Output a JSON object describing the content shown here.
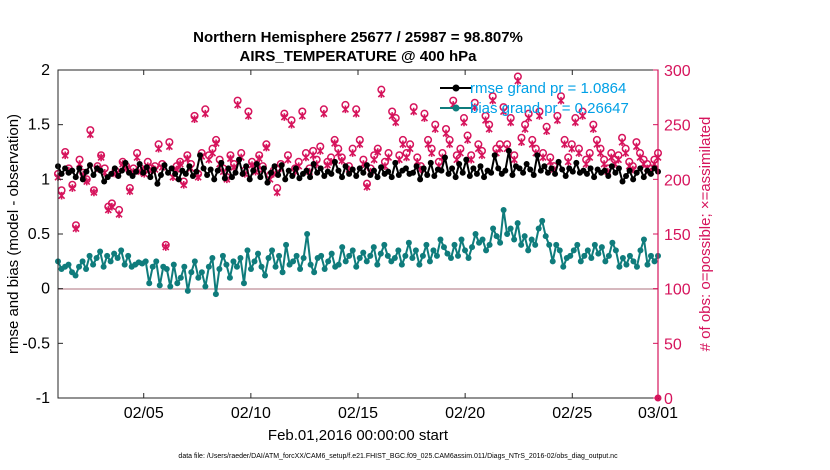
{
  "chart_data": {
    "type": "line",
    "title": [
      "Northern Hemisphere 25677 / 25987 = 98.807%",
      "AIRS_TEMPERATURE @ 400 hPa"
    ],
    "xlabel": "Feb.01,2016 00:00:00 start",
    "ylabel": "rmse and bias (model - observation)",
    "ylabel_right": "# of obs: o=possible; ×=assimilated",
    "xlim": [
      1,
      29
    ],
    "ylim": [
      -1,
      2
    ],
    "ylim_right": [
      0,
      300
    ],
    "x_ticks": [
      5,
      10,
      15,
      20,
      25,
      29
    ],
    "x_tick_labels": [
      "02/05",
      "02/10",
      "02/15",
      "02/20",
      "02/25",
      "03/01"
    ],
    "y_ticks": [
      -1,
      -0.5,
      0,
      0.5,
      1,
      1.5,
      2
    ],
    "y_tick_labels": [
      "-1",
      "-0.5",
      "0",
      "0.5",
      "1",
      "1.5",
      "2"
    ],
    "y_right_ticks": [
      0,
      50,
      100,
      150,
      200,
      250,
      300
    ],
    "y_right_tick_labels": [
      "0",
      "50",
      "100",
      "150",
      "200",
      "250",
      "300"
    ],
    "legend_position": "top-right",
    "footnote": "data file: /Users/raeder/DAI/ATM_forcXX/CAM6_setup/f.e21.FHIST_BGC.f09_025.CAM6assim.011/Diags_NTrS_2016-02/obs_diag_output.nc",
    "zero_line_color": "#c9a0a8",
    "series": [
      {
        "name": "rmse grand pr = 1.0864",
        "color": "#000000",
        "axis": "left",
        "values": [
          1.12,
          1.05,
          1.1,
          1.06,
          1.08,
          1.02,
          1.1,
          1.0,
          1.07,
          1.13,
          1.04,
          1.1,
          1.08,
          0.98,
          1.02,
          1.05,
          1.1,
          1.03,
          1.08,
          1.15,
          1.06,
          1.03,
          1.07,
          1.14,
          1.06,
          1.11,
          1.02,
          1.09,
          0.96,
          1.04,
          1.13,
          1.06,
          1.1,
          1.05,
          1.0,
          1.08,
          1.05,
          1.12,
          1.03,
          1.07,
          1.22,
          1.1,
          1.04,
          1.09,
          1.0,
          1.08,
          1.15,
          1.01,
          1.1,
          1.02,
          1.06,
          1.18,
          1.05,
          1.12,
          1.0,
          1.08,
          1.14,
          1.02,
          1.1,
          0.97,
          1.06,
          1.12,
          1.04,
          1.13,
          1.0,
          1.08,
          1.03,
          1.1,
          1.01,
          1.05,
          1.08,
          1.02,
          1.14,
          1.06,
          1.1,
          1.03,
          1.07,
          1.05,
          1.16,
          1.08,
          1.02,
          1.12,
          1.05,
          1.09,
          1.03,
          1.1,
          1.06,
          1.13,
          1.04,
          1.08,
          1.02,
          1.11,
          1.05,
          1.07,
          1.02,
          1.15,
          1.04,
          1.08,
          1.1,
          1.05,
          1.06,
          1.12,
          1.0,
          1.1,
          1.04,
          1.15,
          1.03,
          1.09,
          1.08,
          1.2,
          1.05,
          1.1,
          1.02,
          1.14,
          1.06,
          1.18,
          1.03,
          1.1,
          1.05,
          1.12,
          1.02,
          1.08,
          1.06,
          1.22,
          1.1,
          1.05,
          1.08,
          1.26,
          1.04,
          1.12,
          1.1,
          1.06,
          1.14,
          1.09,
          1.04,
          1.22,
          1.08,
          1.12,
          1.06,
          1.1,
          1.05,
          1.16,
          1.09,
          1.03,
          1.1,
          1.07,
          1.15,
          1.06,
          1.08,
          1.05,
          1.1,
          1.02,
          1.09,
          1.06,
          1.08,
          1.03,
          1.12,
          1.06,
          1.1,
          0.98,
          1.03,
          1.08,
          1.0,
          1.06,
          1.1,
          1.02,
          1.08,
          1.05,
          1.1,
          1.07
        ]
      },
      {
        "name": "bias grand pr = 0.26647",
        "color": "#0f7c7c",
        "axis": "left",
        "values": [
          0.25,
          0.18,
          0.2,
          0.22,
          0.15,
          0.12,
          0.2,
          0.25,
          0.18,
          0.3,
          0.22,
          0.28,
          0.34,
          0.2,
          0.3,
          0.25,
          0.32,
          0.28,
          0.35,
          0.22,
          0.3,
          0.2,
          0.22,
          0.24,
          0.23,
          0.25,
          0.05,
          0.2,
          0.25,
          0.03,
          0.2,
          0.18,
          0.02,
          0.22,
          0.05,
          0.1,
          0.2,
          -0.02,
          0.15,
          0.25,
          0.1,
          0.15,
          0.02,
          0.2,
          0.28,
          -0.05,
          0.18,
          0.3,
          0.22,
          0.1,
          0.25,
          0.2,
          0.28,
          0.05,
          0.35,
          0.18,
          0.25,
          0.32,
          0.2,
          0.12,
          0.28,
          0.35,
          0.2,
          0.3,
          0.15,
          0.4,
          0.22,
          0.25,
          0.3,
          0.18,
          0.28,
          0.5,
          0.22,
          0.15,
          0.28,
          0.3,
          0.18,
          0.25,
          0.32,
          0.2,
          0.22,
          0.38,
          0.25,
          0.3,
          0.35,
          0.2,
          0.28,
          0.33,
          0.25,
          0.3,
          0.38,
          0.22,
          0.32,
          0.4,
          0.3,
          0.25,
          0.28,
          0.35,
          0.22,
          0.3,
          0.42,
          0.28,
          0.35,
          0.22,
          0.3,
          0.4,
          0.25,
          0.35,
          0.3,
          0.45,
          0.38,
          0.32,
          0.28,
          0.4,
          0.3,
          0.45,
          0.35,
          0.28,
          0.38,
          0.5,
          0.42,
          0.45,
          0.35,
          0.4,
          0.55,
          0.48,
          0.42,
          0.72,
          0.5,
          0.55,
          0.45,
          0.6,
          0.4,
          0.48,
          0.35,
          0.45,
          0.4,
          0.55,
          0.62,
          0.48,
          0.4,
          0.25,
          0.4,
          0.35,
          0.2,
          0.28,
          0.3,
          0.35,
          0.4,
          0.25,
          0.3,
          0.35,
          0.28,
          0.4,
          0.32,
          0.38,
          0.25,
          0.3,
          0.42,
          0.35,
          0.2,
          0.28,
          0.22,
          0.3,
          0.25,
          0.2,
          0.35,
          0.45,
          0.22,
          0.3,
          0.25,
          0.3
        ]
      },
      {
        "name": "obs possible",
        "color": "#d6145c",
        "axis": "right",
        "marker": "o",
        "values": [
          205,
          190,
          225,
          210,
          195,
          158,
          218,
          206,
          200,
          245,
          190,
          212,
          222,
          210,
          175,
          178,
          208,
          172,
          216,
          212,
          192,
          210,
          224,
          210,
          208,
          216,
          210,
          212,
          232,
          214,
          140,
          234,
          206,
          212,
          216,
          198,
          222,
          214,
          258,
          205,
          224,
          264,
          222,
          228,
          236,
          218,
          210,
          202,
          222,
          214,
          272,
          224,
          208,
          262,
          216,
          210,
          222,
          212,
          232,
          204,
          208,
          192,
          214,
          260,
          222,
          254,
          210,
          216,
          262,
          224,
          210,
          226,
          218,
          230,
          264,
          216,
          220,
          236,
          228,
          220,
          268,
          212,
          228,
          264,
          236,
          218,
          196,
          210,
          222,
          228,
          282,
          216,
          224,
          262,
          256,
          222,
          236,
          224,
          232,
          266,
          220,
          212,
          260,
          236,
          228,
          250,
          216,
          224,
          246,
          236,
          272,
          222,
          228,
          256,
          240,
          222,
          270,
          232,
          226,
          258,
          250,
          276,
          228,
          232,
          266,
          232,
          256,
          222,
          294,
          238,
          250,
          260,
          236,
          228,
          262,
          224,
          248,
          220,
          212,
          258,
          276,
          236,
          220,
          232,
          256,
          228,
          262,
          218,
          224,
          250,
          236,
          228,
          218,
          210,
          224,
          218,
          222,
          238,
          228,
          216,
          212,
          234,
          224,
          218,
          214,
          210,
          218,
          224
        ]
      },
      {
        "name": "obs assimilated",
        "color": "#d6145c",
        "axis": "right",
        "marker": "x",
        "values": [
          202,
          185,
          222,
          208,
          192,
          155,
          214,
          204,
          198,
          241,
          188,
          210,
          220,
          206,
          172,
          175,
          205,
          168,
          214,
          210,
          189,
          207,
          220,
          207,
          205,
          212,
          208,
          209,
          228,
          211,
          138,
          230,
          202,
          209,
          214,
          195,
          219,
          210,
          255,
          202,
          221,
          260,
          218,
          224,
          233,
          214,
          207,
          200,
          219,
          211,
          268,
          220,
          205,
          258,
          213,
          207,
          219,
          209,
          229,
          200,
          205,
          188,
          210,
          257,
          218,
          250,
          207,
          212,
          258,
          220,
          207,
          222,
          214,
          226,
          260,
          213,
          216,
          233,
          224,
          217,
          264,
          209,
          224,
          260,
          232,
          214,
          193,
          207,
          218,
          225,
          278,
          212,
          220,
          258,
          252,
          218,
          232,
          220,
          228,
          262,
          216,
          209,
          256,
          232,
          224,
          246,
          212,
          220,
          242,
          232,
          268,
          218,
          224,
          252,
          236,
          218,
          266,
          228,
          222,
          254,
          246,
          272,
          224,
          228,
          262,
          228,
          252,
          218,
          290,
          234,
          246,
          256,
          232,
          224,
          258,
          220,
          244,
          216,
          209,
          254,
          272,
          232,
          216,
          228,
          252,
          224,
          258,
          214,
          220,
          246,
          232,
          224,
          214,
          207,
          220,
          214,
          218,
          234,
          224,
          212,
          209,
          230,
          220,
          214,
          210,
          207,
          214,
          220
        ]
      }
    ]
  }
}
